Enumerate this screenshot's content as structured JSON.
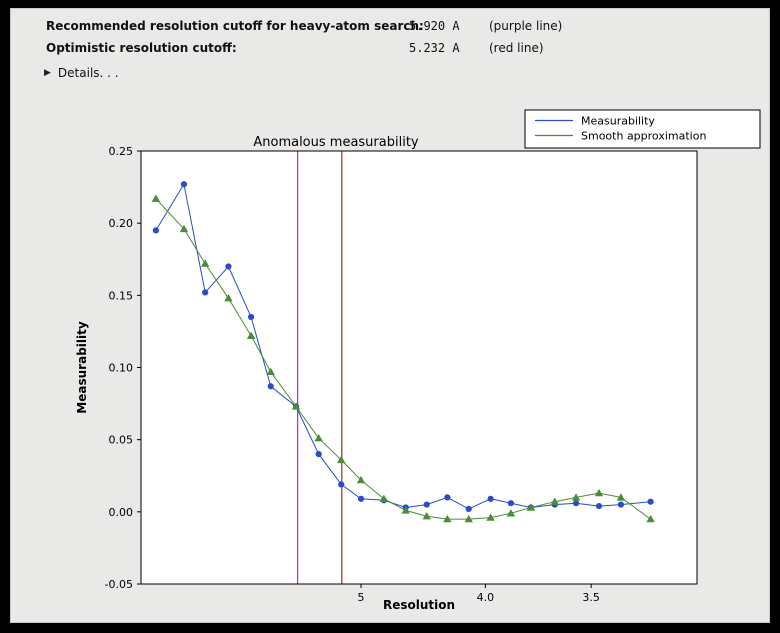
{
  "header": {
    "rows": [
      {
        "label": "Recommended resolution cutoff for heavy-atom search:",
        "value": "5.920 A",
        "note": "(purple line)"
      },
      {
        "label": "Optimistic resolution cutoff:",
        "value": "5.232 A",
        "note": "(red line)"
      }
    ],
    "disclosure_icon": "▶",
    "details_label": "Details. . ."
  },
  "chart_data": {
    "type": "line",
    "title": "Anomalous measurability",
    "xlabel": "Resolution",
    "ylabel": "Measurability",
    "x_unit": "Angstrom",
    "x_scale": "inverse_d_squared",
    "x_edge_d": [
      70.0,
      3.15
    ],
    "x_ticks": [
      {
        "d": 5.0,
        "label": "5"
      },
      {
        "d": 4.0,
        "label": "4.0"
      },
      {
        "d": 3.5,
        "label": "3.5"
      }
    ],
    "ylim": [
      -0.05,
      0.25
    ],
    "y_ticks": [
      {
        "v": 0.25,
        "label": "0.25"
      },
      {
        "v": 0.2,
        "label": "0.20"
      },
      {
        "v": 0.15,
        "label": "0.15"
      },
      {
        "v": 0.1,
        "label": "0.10"
      },
      {
        "v": 0.05,
        "label": "0.05"
      },
      {
        "v": 0.0,
        "label": "0.00"
      },
      {
        "v": -0.05,
        "label": "-0.05"
      }
    ],
    "x": [
      18.6,
      11.2,
      9.2,
      7.9,
      7.05,
      6.5,
      5.95,
      5.56,
      5.24,
      5.0,
      4.76,
      4.56,
      4.39,
      4.24,
      4.1,
      3.97,
      3.86,
      3.76,
      3.65,
      3.56,
      3.47,
      3.39,
      3.29
    ],
    "series": [
      {
        "name": "Measurability",
        "color": "#2b4bc8",
        "marker": "circle",
        "values": [
          0.195,
          0.227,
          0.152,
          0.17,
          0.135,
          0.087,
          0.073,
          0.04,
          0.019,
          0.009,
          0.008,
          0.003,
          0.005,
          0.01,
          0.002,
          0.009,
          0.006,
          0.003,
          0.005,
          0.006,
          0.004,
          0.005,
          0.007
        ]
      },
      {
        "name": "Smooth approximation",
        "color": "#4a8c3a",
        "marker": "triangle",
        "values": [
          0.217,
          0.196,
          0.172,
          0.148,
          0.122,
          0.097,
          0.073,
          0.051,
          0.036,
          0.022,
          0.009,
          0.001,
          -0.003,
          -0.005,
          -0.005,
          -0.004,
          -0.001,
          0.003,
          0.007,
          0.01,
          0.013,
          0.01,
          -0.005
        ]
      }
    ],
    "vlines": [
      {
        "name": "purple line",
        "d": 5.92,
        "color": "#b73bb0"
      },
      {
        "name": "red line",
        "d": 5.232,
        "color": "#99412e"
      }
    ],
    "legend_position": "top-right",
    "grid": false
  }
}
